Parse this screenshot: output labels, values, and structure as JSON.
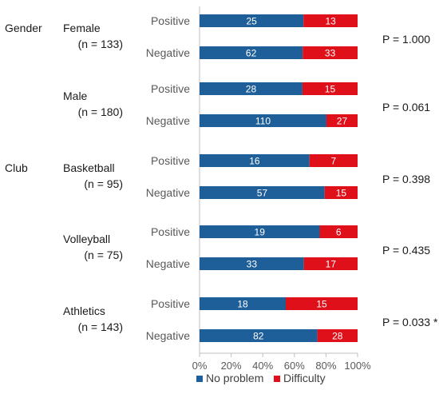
{
  "chart_data": {
    "type": "bar",
    "orientation": "horizontal",
    "stacked": "percent",
    "xlim": [
      0,
      100
    ],
    "x_ticks": [
      "0%",
      "20%",
      "40%",
      "60%",
      "80%",
      "100%"
    ],
    "series": [
      {
        "name": "No problem",
        "color": "#1f5f99"
      },
      {
        "name": "Difficulty",
        "color": "#e0101a"
      }
    ],
    "groups": [
      {
        "category": "Gender",
        "label": "Female",
        "n": "(n = 133)",
        "p_value": "P = 1.000",
        "rows": [
          {
            "label": "Positive",
            "values": [
              25,
              13
            ]
          },
          {
            "label": "Negative",
            "values": [
              62,
              33
            ]
          }
        ]
      },
      {
        "category": "",
        "label": "Male",
        "n": "(n = 180)",
        "p_value": "P = 0.061",
        "rows": [
          {
            "label": "Positive",
            "values": [
              28,
              15
            ]
          },
          {
            "label": "Negative",
            "values": [
              110,
              27
            ]
          }
        ]
      },
      {
        "category": "Club",
        "label": "Basketball",
        "n": "(n = 95)",
        "p_value": "P = 0.398",
        "rows": [
          {
            "label": "Positive",
            "values": [
              16,
              7
            ]
          },
          {
            "label": "Negative",
            "values": [
              57,
              15
            ]
          }
        ]
      },
      {
        "category": "",
        "label": "Volleyball",
        "n": "(n = 75)",
        "p_value": "P = 0.435",
        "rows": [
          {
            "label": "Positive",
            "values": [
              19,
              6
            ]
          },
          {
            "label": "Negative",
            "values": [
              33,
              17
            ]
          }
        ]
      },
      {
        "category": "",
        "label": "Athletics",
        "n": "(n = 143)",
        "p_value": "P = 0.033 *",
        "rows": [
          {
            "label": "Positive",
            "values": [
              18,
              15
            ]
          },
          {
            "label": "Negative",
            "values": [
              82,
              28
            ]
          }
        ]
      }
    ]
  }
}
